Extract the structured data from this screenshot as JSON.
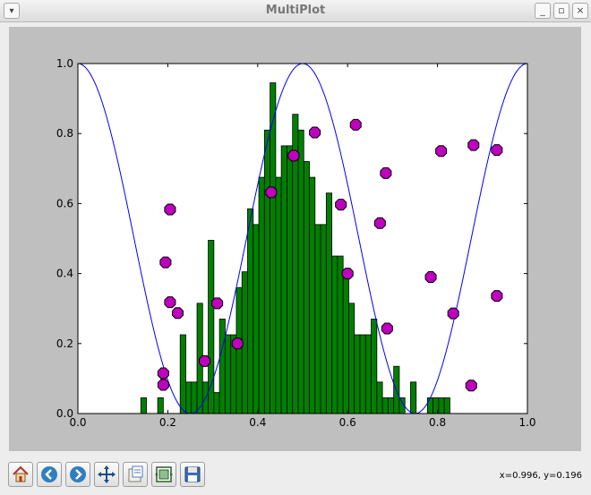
{
  "window": {
    "title": "MultiPlot"
  },
  "status": {
    "coords": "x=0.996, y=0.196"
  },
  "toolbar": {
    "buttons": [
      "home-icon",
      "back-icon",
      "forward-icon",
      "pan-icon",
      "zoom-icon",
      "subplots-icon",
      "save-icon"
    ]
  },
  "colors": {
    "line": "#0000ff",
    "bars": "#008000",
    "markers": "#bf00bf",
    "figure_bg": "#bfbfbf",
    "axes_bg": "#ffffff"
  },
  "chart_data": [
    {
      "type": "bar",
      "name_hint": "histogram",
      "bin_start": 0.14,
      "bin_width": 0.0125,
      "values": [
        0.045,
        0,
        0,
        0.045,
        0,
        0,
        0,
        0.225,
        0.09,
        0.09,
        0.315,
        0.09,
        0.495,
        0.06,
        0.27,
        0.225,
        0.225,
        0.36,
        0.405,
        0.585,
        0.54,
        0.675,
        0.81,
        0.945,
        0.675,
        0.765,
        0.765,
        0.855,
        0.81,
        0.72,
        0.675,
        0.54,
        0.54,
        0.63,
        0.45,
        0.45,
        0.405,
        0.315,
        0.225,
        0.225,
        0.225,
        0.27,
        0.09,
        0.045,
        0.045,
        0.135,
        0.045,
        0,
        0.09,
        0,
        0,
        0.045,
        0.045,
        0.045,
        0.045
      ],
      "color": "#008000"
    },
    {
      "type": "line",
      "x_range": [
        0,
        1
      ],
      "function": "0.5*(1+cos(4*pi*x))",
      "color": "#0000ff"
    },
    {
      "type": "scatter",
      "points": [
        [
          0.19,
          0.115
        ],
        [
          0.19,
          0.082
        ],
        [
          0.195,
          0.432
        ],
        [
          0.205,
          0.583
        ],
        [
          0.205,
          0.318
        ],
        [
          0.222,
          0.287
        ],
        [
          0.282,
          0.15
        ],
        [
          0.31,
          0.315
        ],
        [
          0.355,
          0.2
        ],
        [
          0.43,
          0.632
        ],
        [
          0.48,
          0.737
        ],
        [
          0.527,
          0.803
        ],
        [
          0.585,
          0.597
        ],
        [
          0.6,
          0.4
        ],
        [
          0.618,
          0.825
        ],
        [
          0.672,
          0.544
        ],
        [
          0.685,
          0.687
        ],
        [
          0.688,
          0.243
        ],
        [
          0.785,
          0.39
        ],
        [
          0.808,
          0.75
        ],
        [
          0.835,
          0.286
        ],
        [
          0.875,
          0.08
        ],
        [
          0.88,
          0.767
        ],
        [
          0.932,
          0.753
        ],
        [
          0.932,
          0.336
        ]
      ],
      "color": "#bf00bf"
    }
  ],
  "axes": {
    "xlim": [
      0.0,
      1.0
    ],
    "ylim": [
      0.0,
      1.0
    ],
    "xticks": [
      "0.0",
      "0.2",
      "0.4",
      "0.6",
      "0.8",
      "1.0"
    ],
    "yticks": [
      "0.0",
      "0.2",
      "0.4",
      "0.6",
      "0.8",
      "1.0"
    ]
  }
}
